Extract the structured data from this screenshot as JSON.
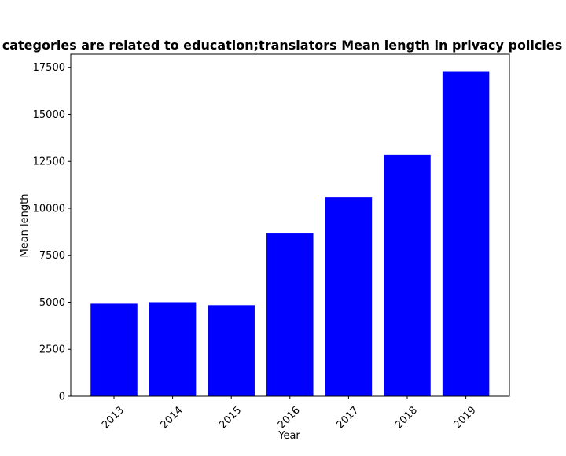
{
  "chart_data": {
    "type": "bar",
    "title": "categories are related to education;translators Mean length in privacy policies",
    "xlabel": "Year",
    "ylabel": "Mean length",
    "categories": [
      "2013",
      "2014",
      "2015",
      "2016",
      "2017",
      "2018",
      "2019"
    ],
    "values": [
      4920,
      5000,
      4840,
      8700,
      10580,
      12850,
      17300
    ],
    "ylim": [
      0,
      18200
    ],
    "yticks": [
      0,
      2500,
      5000,
      7500,
      10000,
      12500,
      15000,
      17500
    ],
    "ytick_labels": [
      "0",
      "2500",
      "5000",
      "7500",
      "10000",
      "12500",
      "15000",
      "17500"
    ],
    "bar_color": "#0000ff",
    "grid": false,
    "xtick_rotation_deg": 45
  }
}
